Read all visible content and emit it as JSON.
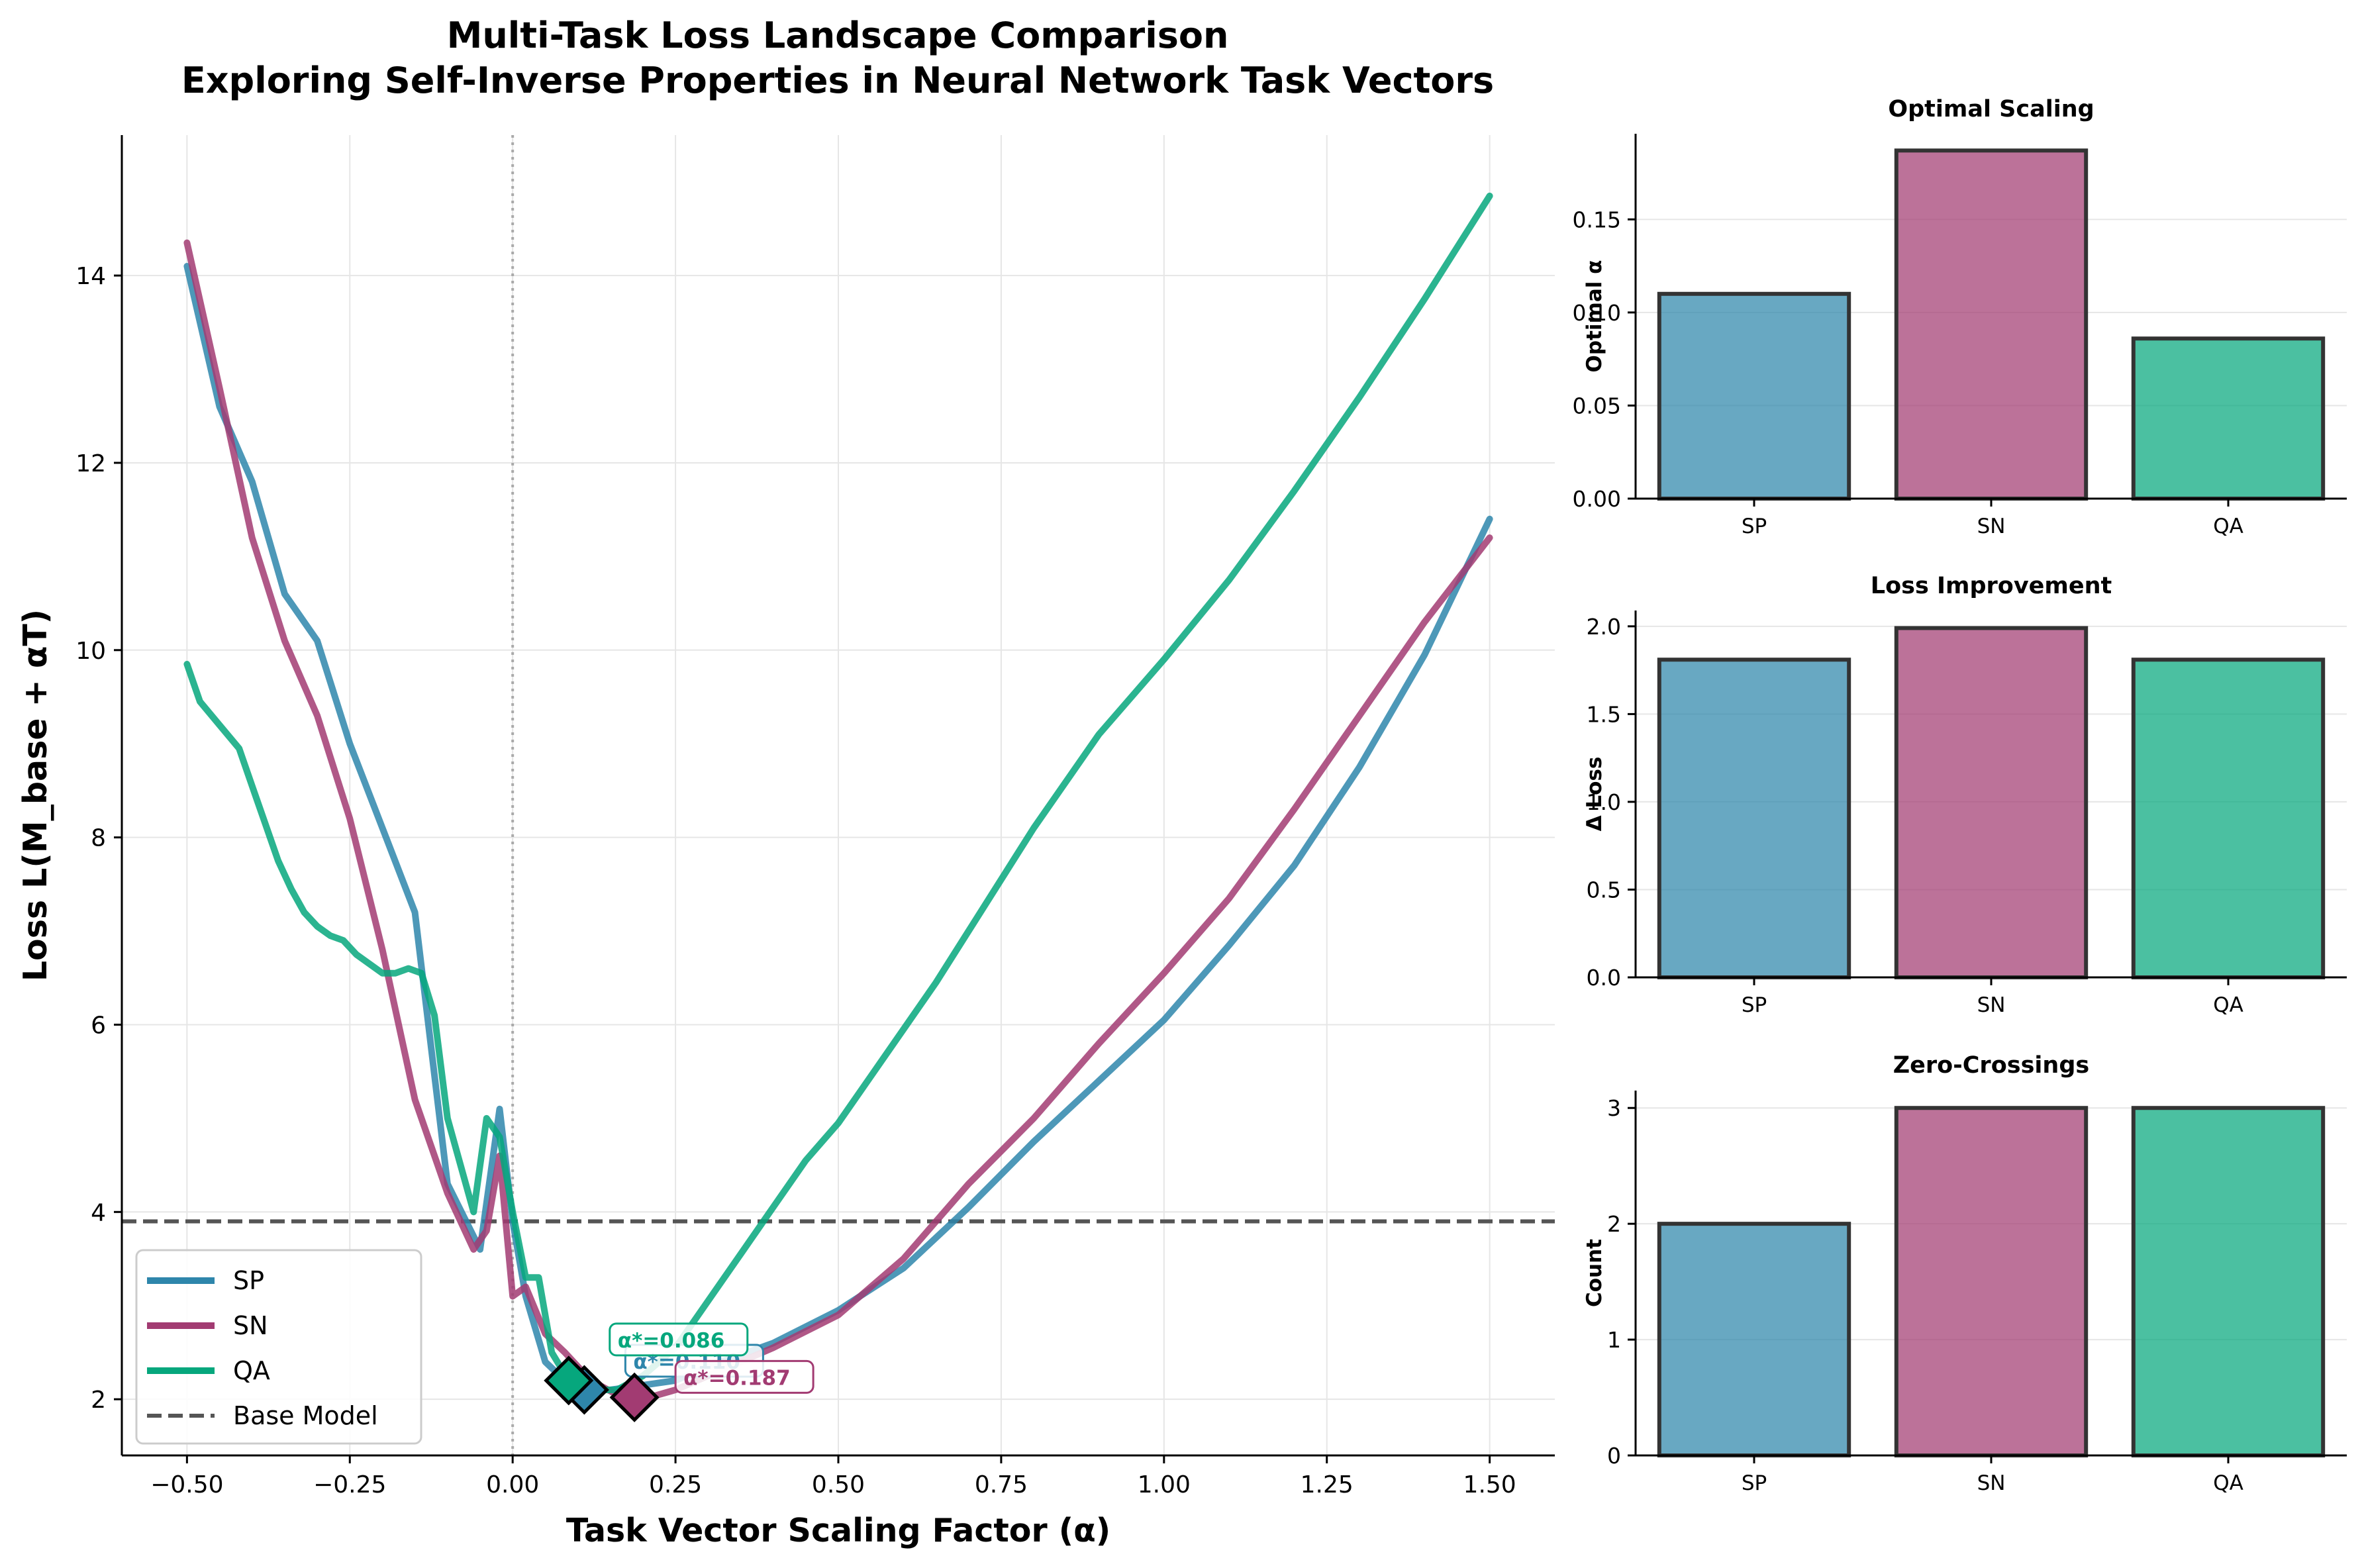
{
  "title_line1": "Multi-Task Loss Landscape Comparison",
  "title_line2": "Exploring Self-Inverse Properties in Neural Network Task Vectors",
  "chart_data": [
    {
      "type": "line",
      "title": "Multi-Task Loss Landscape Comparison\nExploring Self-Inverse Properties in Neural Network Task Vectors",
      "xlabel": "Task Vector Scaling Factor (α)",
      "ylabel": "Loss L(M_base + αT)",
      "xlim": [
        -0.6,
        1.6
      ],
      "ylim": [
        1.4,
        15.5
      ],
      "xticks": [
        -0.5,
        -0.25,
        0.0,
        0.25,
        0.5,
        0.75,
        1.0,
        1.25,
        1.5
      ],
      "xtick_labels": [
        "−0.50",
        "−0.25",
        "0.00",
        "0.25",
        "0.50",
        "0.75",
        "1.00",
        "1.25",
        "1.50"
      ],
      "yticks": [
        2,
        4,
        6,
        8,
        10,
        12,
        14
      ],
      "yticks_labels": [
        "2",
        "4",
        "6",
        "8",
        "10",
        "12",
        "14"
      ],
      "grid": true,
      "legend": "lower-left",
      "series": [
        {
          "name": "SP",
          "color": "#2E86AB",
          "x": [
            -0.5,
            -0.45,
            -0.4,
            -0.35,
            -0.3,
            -0.25,
            -0.2,
            -0.15,
            -0.1,
            -0.05,
            -0.02,
            0.0,
            0.02,
            0.05,
            0.08,
            0.11,
            0.15,
            0.2,
            0.25,
            0.3,
            0.4,
            0.5,
            0.6,
            0.7,
            0.8,
            0.9,
            1.0,
            1.1,
            1.2,
            1.3,
            1.4,
            1.5
          ],
          "y": [
            14.1,
            12.6,
            11.8,
            10.6,
            10.1,
            9.0,
            8.1,
            7.2,
            4.3,
            3.6,
            5.1,
            3.9,
            3.1,
            2.4,
            2.2,
            2.1,
            2.1,
            2.15,
            2.2,
            2.35,
            2.6,
            2.95,
            3.4,
            4.05,
            4.75,
            5.4,
            6.05,
            6.85,
            7.7,
            8.75,
            9.95,
            11.4
          ]
        },
        {
          "name": "SN",
          "color": "#A23B72",
          "x": [
            -0.5,
            -0.45,
            -0.4,
            -0.35,
            -0.3,
            -0.25,
            -0.2,
            -0.15,
            -0.1,
            -0.06,
            -0.04,
            -0.02,
            0.0,
            0.02,
            0.05,
            0.08,
            0.12,
            0.16,
            0.2,
            0.25,
            0.3,
            0.4,
            0.5,
            0.6,
            0.7,
            0.8,
            0.9,
            1.0,
            1.1,
            1.2,
            1.3,
            1.4,
            1.5
          ],
          "y": [
            14.35,
            12.8,
            11.2,
            10.1,
            9.3,
            8.2,
            6.8,
            5.2,
            4.2,
            3.6,
            3.8,
            4.6,
            3.1,
            3.2,
            2.7,
            2.5,
            2.2,
            2.05,
            2.0,
            2.1,
            2.25,
            2.55,
            2.9,
            3.5,
            4.3,
            5.0,
            5.8,
            6.55,
            7.35,
            8.3,
            9.3,
            10.3,
            11.2
          ]
        },
        {
          "name": "QA",
          "color": "#06A77D",
          "x": [
            -0.5,
            -0.48,
            -0.45,
            -0.42,
            -0.4,
            -0.38,
            -0.36,
            -0.34,
            -0.32,
            -0.3,
            -0.28,
            -0.26,
            -0.24,
            -0.22,
            -0.2,
            -0.18,
            -0.16,
            -0.14,
            -0.12,
            -0.1,
            -0.08,
            -0.06,
            -0.04,
            -0.02,
            0.0,
            0.02,
            0.04,
            0.06,
            0.086,
            0.12,
            0.16,
            0.2,
            0.25,
            0.3,
            0.35,
            0.4,
            0.45,
            0.5,
            0.55,
            0.6,
            0.65,
            0.7,
            0.75,
            0.8,
            0.9,
            1.0,
            1.1,
            1.2,
            1.3,
            1.4,
            1.5
          ],
          "y": [
            9.85,
            9.45,
            9.2,
            8.95,
            8.55,
            8.15,
            7.75,
            7.45,
            7.2,
            7.05,
            6.95,
            6.9,
            6.75,
            6.65,
            6.55,
            6.55,
            6.6,
            6.55,
            6.1,
            5.0,
            4.5,
            4.0,
            5.0,
            4.8,
            4.0,
            3.3,
            3.3,
            2.5,
            2.2,
            2.1,
            2.1,
            2.25,
            2.55,
            3.05,
            3.55,
            4.05,
            4.55,
            4.95,
            5.45,
            5.95,
            6.45,
            7.0,
            7.55,
            8.1,
            9.1,
            9.9,
            10.75,
            11.7,
            12.7,
            13.75,
            14.85
          ]
        }
      ],
      "reference_line": {
        "name": "Base Model",
        "y": 3.9,
        "color": "#555555",
        "style": "dashed"
      },
      "markers": [
        {
          "series": "SP",
          "x": 0.11,
          "y": 2.1,
          "color": "#2E86AB",
          "label": "α*=0.110"
        },
        {
          "series": "SN",
          "x": 0.187,
          "y": 2.02,
          "color": "#A23B72",
          "label": "α*=0.187"
        },
        {
          "series": "QA",
          "x": 0.086,
          "y": 2.2,
          "color": "#06A77D",
          "label": "α*=0.086"
        }
      ]
    },
    {
      "type": "bar",
      "title": "Optimal Scaling",
      "ylabel": "Optimal α",
      "categories": [
        "SP",
        "SN",
        "QA"
      ],
      "values": [
        0.11,
        0.187,
        0.086
      ],
      "colors": [
        "#2E86AB",
        "#A23B72",
        "#06A77D"
      ],
      "ylim": [
        0,
        0.196
      ],
      "yticks": [
        0.0,
        0.05,
        0.1,
        0.15
      ],
      "ytick_labels": [
        "0.00",
        "0.05",
        "0.10",
        "0.15"
      ]
    },
    {
      "type": "bar",
      "title": "Loss Improvement",
      "ylabel": "Δ Loss",
      "categories": [
        "SP",
        "SN",
        "QA"
      ],
      "values": [
        1.81,
        1.99,
        1.81
      ],
      "colors": [
        "#2E86AB",
        "#A23B72",
        "#06A77D"
      ],
      "ylim": [
        0,
        2.09
      ],
      "yticks": [
        0.0,
        0.5,
        1.0,
        1.5,
        2.0
      ],
      "ytick_labels": [
        "0.0",
        "0.5",
        "1.0",
        "1.5",
        "2.0"
      ]
    },
    {
      "type": "bar",
      "title": "Zero-Crossings",
      "ylabel": "Count",
      "categories": [
        "SP",
        "SN",
        "QA"
      ],
      "values": [
        2,
        3,
        3
      ],
      "colors": [
        "#2E86AB",
        "#A23B72",
        "#06A77D"
      ],
      "ylim": [
        0,
        3.15
      ],
      "yticks": [
        0,
        1,
        2,
        3
      ],
      "ytick_labels": [
        "0",
        "1",
        "2",
        "3"
      ]
    }
  ]
}
